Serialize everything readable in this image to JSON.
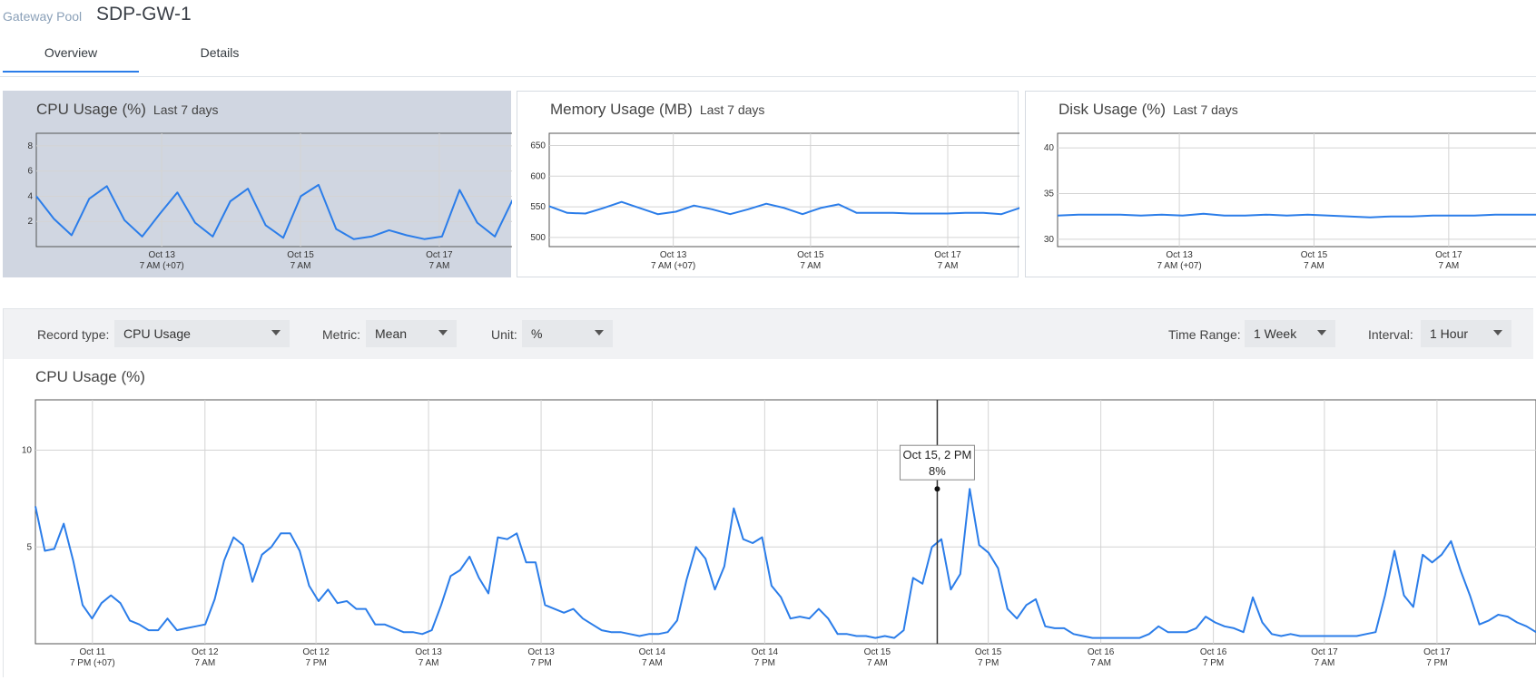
{
  "header": {
    "breadcrumb": "Gateway Pool",
    "title": "SDP-GW-1"
  },
  "tabs": [
    {
      "label": "Overview",
      "active": true
    },
    {
      "label": "Details",
      "active": false
    }
  ],
  "accent_color": "#2b7de9",
  "summary_cards": [
    {
      "title": "CPU Usage (%)",
      "subtitle": "Last 7 days",
      "selected": true
    },
    {
      "title": "Memory Usage (MB)",
      "subtitle": "Last 7 days",
      "selected": false
    },
    {
      "title": "Disk Usage (%)",
      "subtitle": "Last 7 days",
      "selected": false
    }
  ],
  "filters": {
    "record_type": {
      "label": "Record type:",
      "value": "CPU Usage"
    },
    "metric": {
      "label": "Metric:",
      "value": "Mean"
    },
    "unit": {
      "label": "Unit:",
      "value": "%"
    },
    "time_range": {
      "label": "Time Range:",
      "value": "1 Week"
    },
    "interval": {
      "label": "Interval:",
      "value": "1 Hour"
    }
  },
  "main_chart_title": "CPU Usage (%)",
  "tooltip": {
    "line1": "Oct 15, 2 PM",
    "line2": "8%"
  },
  "chart_data": [
    {
      "type": "line",
      "title": "CPU Usage (%)",
      "subtitle": "Last 7 days",
      "xlim": [
        0,
        1
      ],
      "x_ticks": [
        {
          "x": 0.254,
          "label1": "Oct 13",
          "label2": "7 AM (+07)"
        },
        {
          "x": 0.535,
          "label1": "Oct 15",
          "label2": "7 AM"
        },
        {
          "x": 0.816,
          "label1": "Oct 17",
          "label2": "7 AM"
        }
      ],
      "ylim": [
        0,
        9
      ],
      "y_ticks": [
        2,
        4,
        6,
        8
      ],
      "series": [
        {
          "values": [
            4,
            2.2,
            0.9,
            3.8,
            4.8,
            2.1,
            0.8,
            2.6,
            4.3,
            1.9,
            0.8,
            3.6,
            4.6,
            1.7,
            0.7,
            4,
            4.9,
            1.4,
            0.6,
            0.8,
            1.3,
            0.9,
            0.6,
            0.8,
            4.5,
            1.9,
            0.8,
            3.7,
            3.3
          ]
        }
      ]
    },
    {
      "type": "line",
      "title": "Memory Usage (MB)",
      "subtitle": "Last 7 days",
      "xlim": [
        0,
        1
      ],
      "x_ticks": [
        {
          "x": 0.254,
          "label1": "Oct 13",
          "label2": "7 AM (+07)"
        },
        {
          "x": 0.535,
          "label1": "Oct 15",
          "label2": "7 AM"
        },
        {
          "x": 0.816,
          "label1": "Oct 17",
          "label2": "7 AM"
        }
      ],
      "ylim": [
        485,
        670
      ],
      "y_ticks": [
        500,
        550,
        600,
        650
      ],
      "series": [
        {
          "values": [
            551,
            540,
            539,
            548,
            558,
            548,
            538,
            542,
            552,
            546,
            538,
            546,
            555,
            548,
            538,
            548,
            554,
            540,
            540,
            540,
            539,
            539,
            539,
            540,
            540,
            538,
            548,
            552
          ]
        }
      ]
    },
    {
      "type": "line",
      "title": "Disk Usage (%)",
      "subtitle": "Last 7 days",
      "xlim": [
        0,
        1
      ],
      "x_ticks": [
        {
          "x": 0.254,
          "label1": "Oct 13",
          "label2": "7 AM (+07)"
        },
        {
          "x": 0.535,
          "label1": "Oct 15",
          "label2": "7 AM"
        },
        {
          "x": 0.816,
          "label1": "Oct 17",
          "label2": "7 AM"
        }
      ],
      "ylim": [
        29.2,
        41.6
      ],
      "y_ticks": [
        30,
        35,
        40
      ],
      "series": [
        {
          "values": [
            32.6,
            32.7,
            32.7,
            32.7,
            32.6,
            32.7,
            32.6,
            32.8,
            32.6,
            32.6,
            32.7,
            32.6,
            32.7,
            32.6,
            32.5,
            32.4,
            32.5,
            32.5,
            32.6,
            32.6,
            32.6,
            32.7,
            32.7,
            32.7
          ]
        }
      ]
    },
    {
      "type": "line",
      "title": "CPU Usage (%)",
      "xlim": [
        0,
        1
      ],
      "x_ticks": [
        {
          "x": 0.038,
          "label1": "Oct 11",
          "label2": "7 PM (+07)"
        },
        {
          "x": 0.113,
          "label1": "Oct 12",
          "label2": "7 AM"
        },
        {
          "x": 0.187,
          "label1": "Oct 12",
          "label2": "7 PM"
        },
        {
          "x": 0.262,
          "label1": "Oct 13",
          "label2": "7 AM"
        },
        {
          "x": 0.337,
          "label1": "Oct 13",
          "label2": "7 PM"
        },
        {
          "x": 0.411,
          "label1": "Oct 14",
          "label2": "7 AM"
        },
        {
          "x": 0.486,
          "label1": "Oct 14",
          "label2": "7 PM"
        },
        {
          "x": 0.561,
          "label1": "Oct 15",
          "label2": "7 AM"
        },
        {
          "x": 0.635,
          "label1": "Oct 15",
          "label2": "7 PM"
        },
        {
          "x": 0.71,
          "label1": "Oct 16",
          "label2": "7 AM"
        },
        {
          "x": 0.785,
          "label1": "Oct 16",
          "label2": "7 PM"
        },
        {
          "x": 0.859,
          "label1": "Oct 17",
          "label2": "7 AM"
        },
        {
          "x": 0.934,
          "label1": "Oct 17",
          "label2": "7 PM"
        }
      ],
      "ylim": [
        0,
        12.6
      ],
      "y_ticks": [
        5,
        10
      ],
      "highlight": {
        "x": 0.601,
        "y": 8,
        "label": "Oct 15, 2 PM",
        "value": "8%"
      },
      "series": [
        {
          "values": [
            7.1,
            4.8,
            4.9,
            6.2,
            4.3,
            2,
            1.3,
            2.1,
            2.5,
            2.1,
            1.2,
            1,
            0.7,
            0.7,
            1.3,
            0.7,
            0.8,
            0.9,
            1,
            2.3,
            4.3,
            5.5,
            5.1,
            3.2,
            4.6,
            5,
            5.7,
            5.7,
            4.8,
            3,
            2.2,
            2.8,
            2.1,
            2.2,
            1.8,
            1.8,
            1,
            1,
            0.8,
            0.6,
            0.6,
            0.5,
            0.7,
            2,
            3.5,
            3.8,
            4.5,
            3.4,
            2.6,
            5.5,
            5.4,
            5.7,
            4.2,
            4.2,
            2,
            1.8,
            1.6,
            1.8,
            1.3,
            1,
            0.7,
            0.6,
            0.6,
            0.5,
            0.4,
            0.5,
            0.5,
            0.6,
            1.2,
            3.3,
            5,
            4.4,
            2.8,
            4,
            7,
            5.4,
            5.2,
            5.5,
            3,
            2.4,
            1.3,
            1.4,
            1.3,
            1.8,
            1.3,
            0.5,
            0.5,
            0.4,
            0.4,
            0.3,
            0.4,
            0.3,
            0.7,
            3.4,
            3.1,
            5,
            5.4,
            2.8,
            3.6,
            8,
            5.1,
            4.7,
            3.9,
            1.8,
            1.3,
            2,
            2.3,
            0.9,
            0.8,
            0.8,
            0.5,
            0.4,
            0.3,
            0.3,
            0.3,
            0.3,
            0.3,
            0.3,
            0.5,
            0.9,
            0.6,
            0.6,
            0.6,
            0.8,
            1.4,
            1.1,
            0.9,
            0.8,
            0.6,
            2.4,
            1.1,
            0.5,
            0.4,
            0.5,
            0.4,
            0.4,
            0.4,
            0.4,
            0.4,
            0.4,
            0.4,
            0.5,
            0.6,
            2.5,
            4.8,
            2.5,
            1.9,
            4.6,
            4.2,
            4.6,
            5.3,
            3.8,
            2.5,
            1,
            1.2,
            1.5,
            1.4,
            1.1,
            0.9,
            0.6
          ]
        }
      ]
    }
  ]
}
